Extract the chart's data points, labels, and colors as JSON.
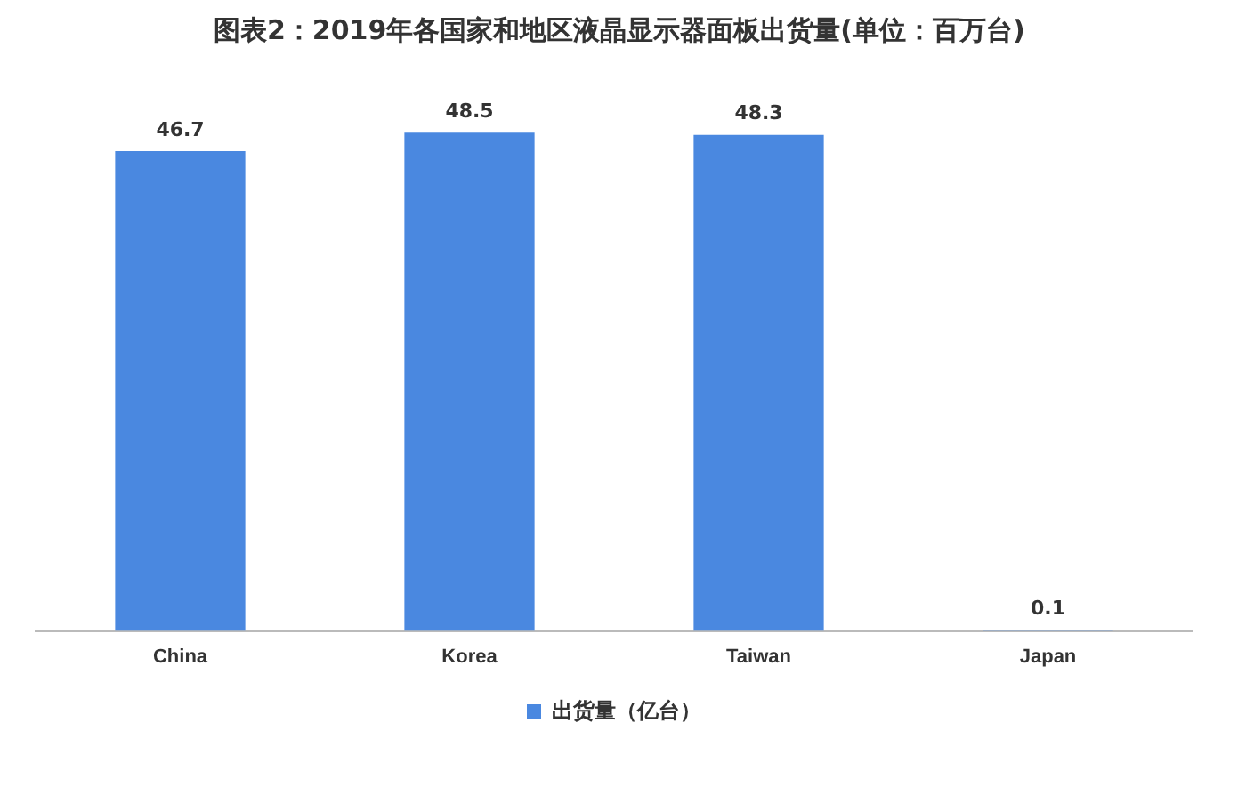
{
  "chart_data": {
    "type": "bar",
    "title": "图表2：2019年各国家和地区液晶显示器面板出货量(单位：百万台)",
    "categories": [
      "China",
      "Korea",
      "Taiwan",
      "Japan"
    ],
    "series": [
      {
        "name": "出货量（亿台）",
        "color": "#4a88e0",
        "values": [
          46.7,
          48.5,
          48.3,
          0.1
        ]
      }
    ],
    "data_labels": true,
    "legend": "bottom",
    "grid": false
  }
}
